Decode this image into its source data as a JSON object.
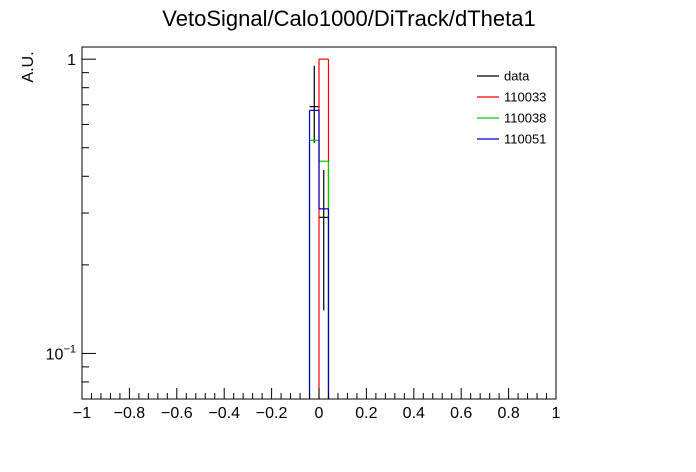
{
  "chart_data": {
    "type": "histogram",
    "title": "VetoSignal/Calo1000/DiTrack/dTheta1",
    "xlabel": "",
    "ylabel": "A.U.",
    "xlim": [
      -1,
      1
    ],
    "ylim": [
      0.07,
      1.1
    ],
    "yscale": "log",
    "grid": false,
    "legend_position": "top-right",
    "x_ticks": [
      {
        "value": -1,
        "label": "−1"
      },
      {
        "value": -0.8,
        "label": "−0.8"
      },
      {
        "value": -0.6,
        "label": "−0.6"
      },
      {
        "value": -0.4,
        "label": "−0.4"
      },
      {
        "value": -0.2,
        "label": "−0.2"
      },
      {
        "value": 0,
        "label": "0"
      },
      {
        "value": 0.2,
        "label": "0.2"
      },
      {
        "value": 0.4,
        "label": "0.4"
      },
      {
        "value": 0.6,
        "label": "0.6"
      },
      {
        "value": 0.8,
        "label": "0.8"
      },
      {
        "value": 1,
        "label": "1"
      }
    ],
    "y_ticks": [
      {
        "value": 1,
        "label": "1"
      },
      {
        "value": 0.1,
        "label": "10",
        "sup": "−1"
      }
    ],
    "series": [
      {
        "name": "data",
        "color": "#000000",
        "style": "points",
        "points": [
          {
            "x": -0.02,
            "y": 0.69,
            "yerr_low": 0.52,
            "yerr_high": 0.95
          },
          {
            "x": 0.02,
            "y": 0.29,
            "yerr_low": 0.14,
            "yerr_high": 0.42
          }
        ]
      },
      {
        "name": "110033",
        "color": "#ff0000",
        "style": "step",
        "bins": [
          {
            "lo": 0.0,
            "hi": 0.04,
            "y": 1.0
          }
        ]
      },
      {
        "name": "110038",
        "color": "#00cc00",
        "style": "step",
        "bins": [
          {
            "lo": -0.04,
            "hi": 0.0,
            "y": 0.53
          },
          {
            "lo": 0.0,
            "hi": 0.04,
            "y": 0.45
          }
        ]
      },
      {
        "name": "110051",
        "color": "#0000cc",
        "style": "step",
        "bins": [
          {
            "lo": -0.04,
            "hi": 0.0,
            "y": 0.67
          },
          {
            "lo": 0.0,
            "hi": 0.04,
            "y": 0.31
          }
        ]
      }
    ]
  }
}
